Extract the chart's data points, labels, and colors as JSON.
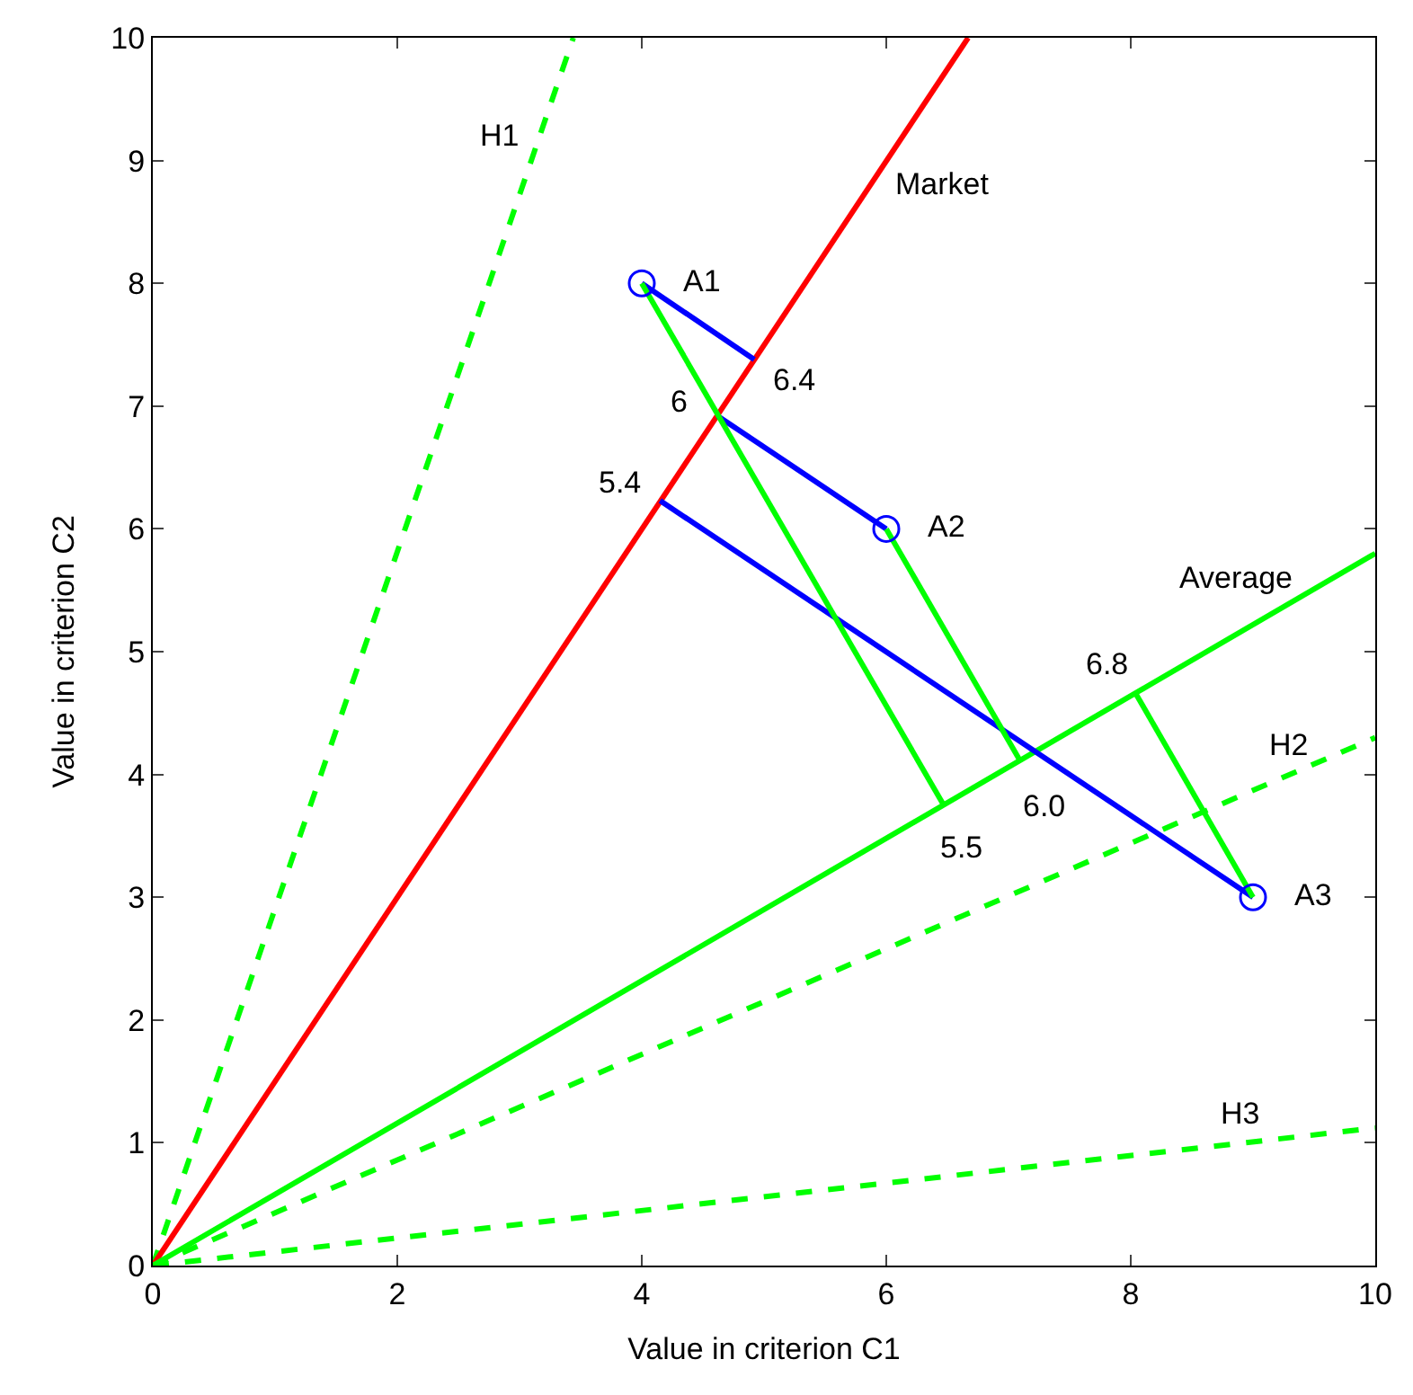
{
  "chart_data": {
    "type": "line",
    "xlabel": "Value in criterion C1",
    "ylabel": "Value in criterion C2",
    "xlim": [
      0,
      10
    ],
    "ylim": [
      0,
      10
    ],
    "xticks": [
      0,
      2,
      4,
      6,
      8,
      10
    ],
    "yticks": [
      0,
      1,
      2,
      3,
      4,
      5,
      6,
      7,
      8,
      9,
      10
    ],
    "grid": false,
    "legend": false,
    "series": [
      {
        "name": "H1",
        "color": "#00ff00",
        "line_style": "dashed",
        "x": [
          0,
          3.44
        ],
        "values": [
          0,
          10
        ]
      },
      {
        "name": "Market",
        "color": "#ff0000",
        "line_style": "solid",
        "x": [
          0,
          6.67
        ],
        "values": [
          0,
          10
        ]
      },
      {
        "name": "Average",
        "color": "#00ff00",
        "line_style": "solid",
        "x": [
          0,
          10
        ],
        "values": [
          0,
          5.8
        ]
      },
      {
        "name": "H2",
        "color": "#00ff00",
        "line_style": "dashed",
        "x": [
          0,
          10
        ],
        "values": [
          0,
          4.3
        ]
      },
      {
        "name": "H3",
        "color": "#00ff00",
        "line_style": "dashed",
        "x": [
          0,
          10
        ],
        "values": [
          0,
          1.12
        ]
      },
      {
        "color": "#0000ff",
        "line_style": "solid",
        "x": [
          4,
          4.92
        ],
        "values": [
          8,
          7.38
        ]
      },
      {
        "color": "#0000ff",
        "line_style": "solid",
        "x": [
          6,
          4.62
        ],
        "values": [
          6,
          6.92
        ]
      },
      {
        "color": "#0000ff",
        "line_style": "solid",
        "x": [
          9,
          4.15
        ],
        "values": [
          3,
          6.23
        ]
      },
      {
        "color": "#00ff00",
        "line_style": "solid",
        "x": [
          4,
          6.47
        ],
        "values": [
          8,
          3.75
        ]
      },
      {
        "color": "#00ff00",
        "line_style": "solid",
        "x": [
          6,
          7.09
        ],
        "values": [
          6,
          4.12
        ]
      },
      {
        "color": "#00ff00",
        "line_style": "solid",
        "x": [
          9,
          8.04
        ],
        "values": [
          3,
          4.66
        ]
      },
      {
        "type": "scatter",
        "name": "A1",
        "color": "#0000ff",
        "marker": "circle",
        "x": [
          4
        ],
        "values": [
          8
        ]
      },
      {
        "type": "scatter",
        "name": "A2",
        "color": "#0000ff",
        "marker": "circle",
        "x": [
          6
        ],
        "values": [
          6
        ]
      },
      {
        "type": "scatter",
        "name": "A3",
        "color": "#0000ff",
        "marker": "circle",
        "x": [
          9
        ],
        "values": [
          3
        ]
      }
    ],
    "annotations": [
      {
        "text": "6.4",
        "x": 4.92,
        "y": 7.38
      },
      {
        "text": "6",
        "x": 4.62,
        "y": 6.92
      },
      {
        "text": "5.4",
        "x": 4.15,
        "y": 6.23
      },
      {
        "text": "5.5",
        "x": 6.47,
        "y": 3.75
      },
      {
        "text": "6.0",
        "x": 7.09,
        "y": 4.12
      },
      {
        "text": "6.8",
        "x": 8.04,
        "y": 4.66
      }
    ]
  }
}
